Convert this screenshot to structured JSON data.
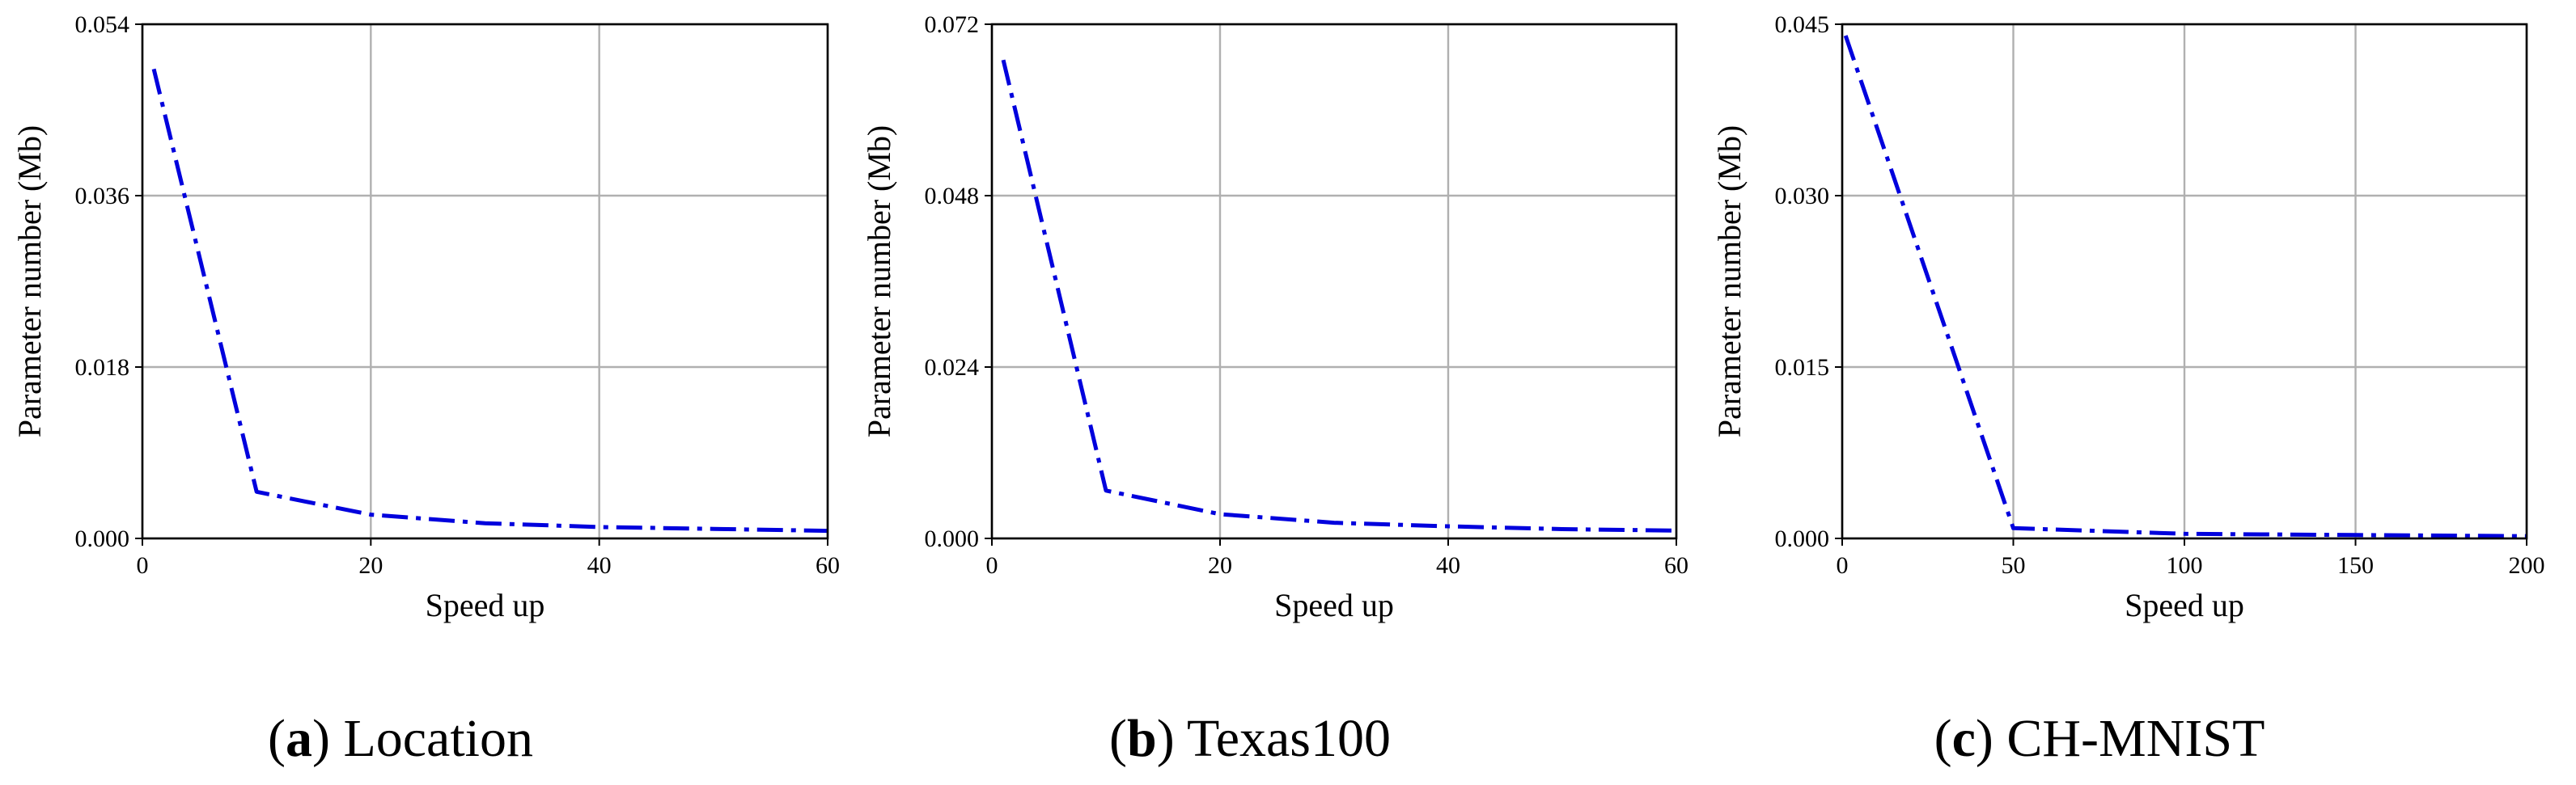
{
  "chart_data": [
    {
      "type": "line",
      "panel_letter": "a",
      "caption": "Location",
      "xlabel": "Speed up",
      "ylabel": "Parameter number (Mb)",
      "xlim": [
        0,
        60
      ],
      "ylim": [
        0,
        0.054
      ],
      "xticks": [
        "0",
        "20",
        "40",
        "60"
      ],
      "yticks": [
        "0.000",
        "0.018",
        "0.036",
        "0.054"
      ],
      "grid": true,
      "series": [
        {
          "color": "#0000dd",
          "x": [
            1,
            10,
            20,
            30,
            40,
            50,
            60
          ],
          "y": [
            0.0493,
            0.0049,
            0.0025,
            0.0016,
            0.0012,
            0.001,
            0.0008
          ]
        }
      ]
    },
    {
      "type": "line",
      "panel_letter": "b",
      "caption": "Texas100",
      "xlabel": "Speed up",
      "ylabel": "Parameter number (Mb)",
      "xlim": [
        0,
        60
      ],
      "ylim": [
        0,
        0.072
      ],
      "xticks": [
        "0",
        "20",
        "40",
        "60"
      ],
      "yticks": [
        "0.000",
        "0.024",
        "0.048",
        "0.072"
      ],
      "grid": true,
      "series": [
        {
          "color": "#0000dd",
          "x": [
            1,
            10,
            20,
            30,
            40,
            50,
            60
          ],
          "y": [
            0.067,
            0.0067,
            0.0034,
            0.0022,
            0.0017,
            0.0013,
            0.0011
          ]
        }
      ]
    },
    {
      "type": "line",
      "panel_letter": "c",
      "caption": "CH-MNIST",
      "xlabel": "Speed up",
      "ylabel": "Parameter number (Mb)",
      "xlim": [
        0,
        200
      ],
      "ylim": [
        0,
        0.045
      ],
      "xticks": [
        "0",
        "50",
        "100",
        "150",
        "200"
      ],
      "yticks": [
        "0.000",
        "0.015",
        "0.030",
        "0.045"
      ],
      "grid": true,
      "series": [
        {
          "color": "#0000dd",
          "x": [
            1,
            50,
            100,
            150,
            200
          ],
          "y": [
            0.044,
            0.0009,
            0.0004,
            0.0003,
            0.0002
          ]
        }
      ]
    }
  ]
}
